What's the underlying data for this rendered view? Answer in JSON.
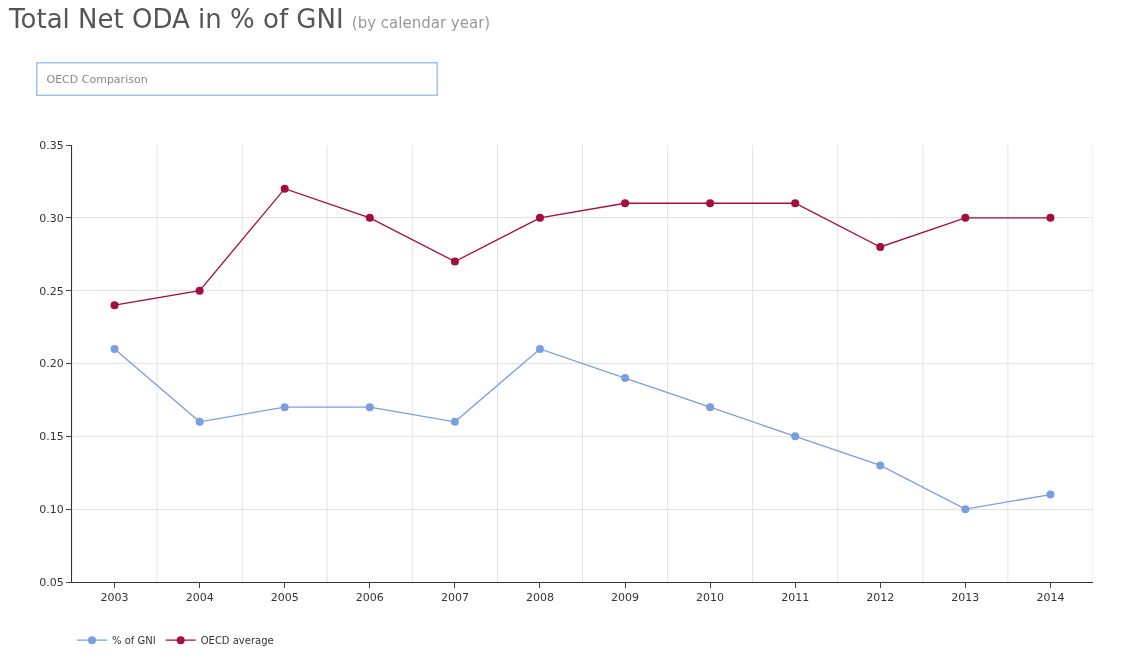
{
  "chart_data": {
    "type": "line",
    "title": "Total Net ODA in % of GNI",
    "subtitle": "(by calendar year)",
    "annotations": [
      "OECD Comparison"
    ],
    "categories": [
      "2003",
      "2004",
      "2005",
      "2006",
      "2007",
      "2008",
      "2009",
      "2010",
      "2011",
      "2012",
      "2013",
      "2014"
    ],
    "series": [
      {
        "name": "% of GNI",
        "color": "#7b9ee0",
        "values": [
          0.21,
          0.16,
          0.17,
          0.17,
          0.16,
          0.21,
          0.19,
          0.17,
          0.15,
          0.13,
          0.1,
          0.11
        ]
      },
      {
        "name": "OECD average",
        "color": "#a50d3c",
        "values": [
          0.24,
          0.25,
          0.32,
          0.3,
          0.27,
          0.3,
          0.31,
          0.31,
          0.31,
          0.28,
          0.3,
          0.3
        ]
      }
    ],
    "ylim": [
      0.05,
      0.35
    ],
    "yticks": [
      0.05,
      {
        "value": 0.1,
        "label": "0.10"
      },
      0.15,
      {
        "value": 0.2,
        "label": "0.20"
      },
      0.25,
      {
        "value": 0.3,
        "label": "0.30"
      },
      0.35
    ],
    "grid": true,
    "legend": "bottom left",
    "marker": "circle",
    "line_style": "solid"
  }
}
